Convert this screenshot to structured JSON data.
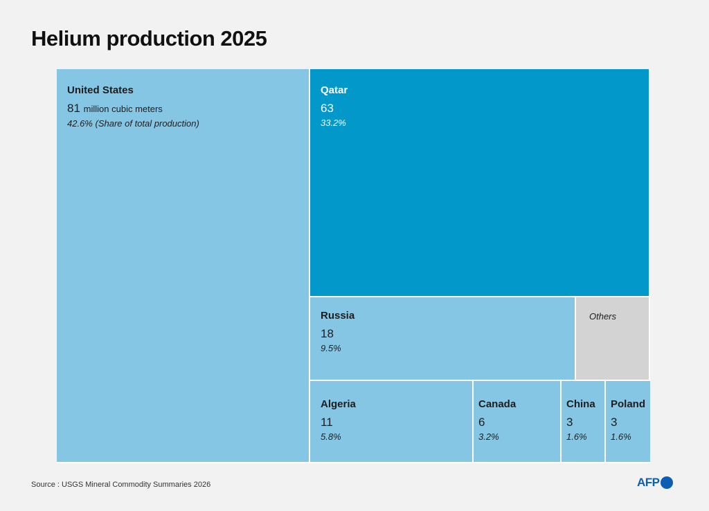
{
  "title": "Helium production 2025",
  "source": "Source : USGS Mineral Commodity Summaries 2026",
  "logo": "AFP",
  "colors": {
    "light": "#85c6e5",
    "accent": "#0398ca",
    "others": "#d3d3d3"
  },
  "chart_data": {
    "type": "treemap",
    "title": "Helium production 2025",
    "unit": "million cubic meters",
    "share_note": "(Share of total production)",
    "tiles": [
      {
        "id": "us",
        "name": "United States",
        "value": "81",
        "share": "42.6%",
        "color": "light"
      },
      {
        "id": "qatar",
        "name": "Qatar",
        "value": "63",
        "share": "33.2%",
        "color": "accent"
      },
      {
        "id": "russia",
        "name": "Russia",
        "value": "18",
        "share": "9.5%",
        "color": "light"
      },
      {
        "id": "others",
        "name": "Others",
        "color": "others"
      },
      {
        "id": "algeria",
        "name": "Algeria",
        "value": "11",
        "share": "5.8%",
        "color": "light"
      },
      {
        "id": "canada",
        "name": "Canada",
        "value": "6",
        "share": "3.2%",
        "color": "light"
      },
      {
        "id": "china",
        "name": "China",
        "value": "3",
        "share": "1.6%",
        "color": "light"
      },
      {
        "id": "poland",
        "name": "Poland",
        "value": "3",
        "share": "1.6%",
        "color": "light"
      }
    ]
  }
}
